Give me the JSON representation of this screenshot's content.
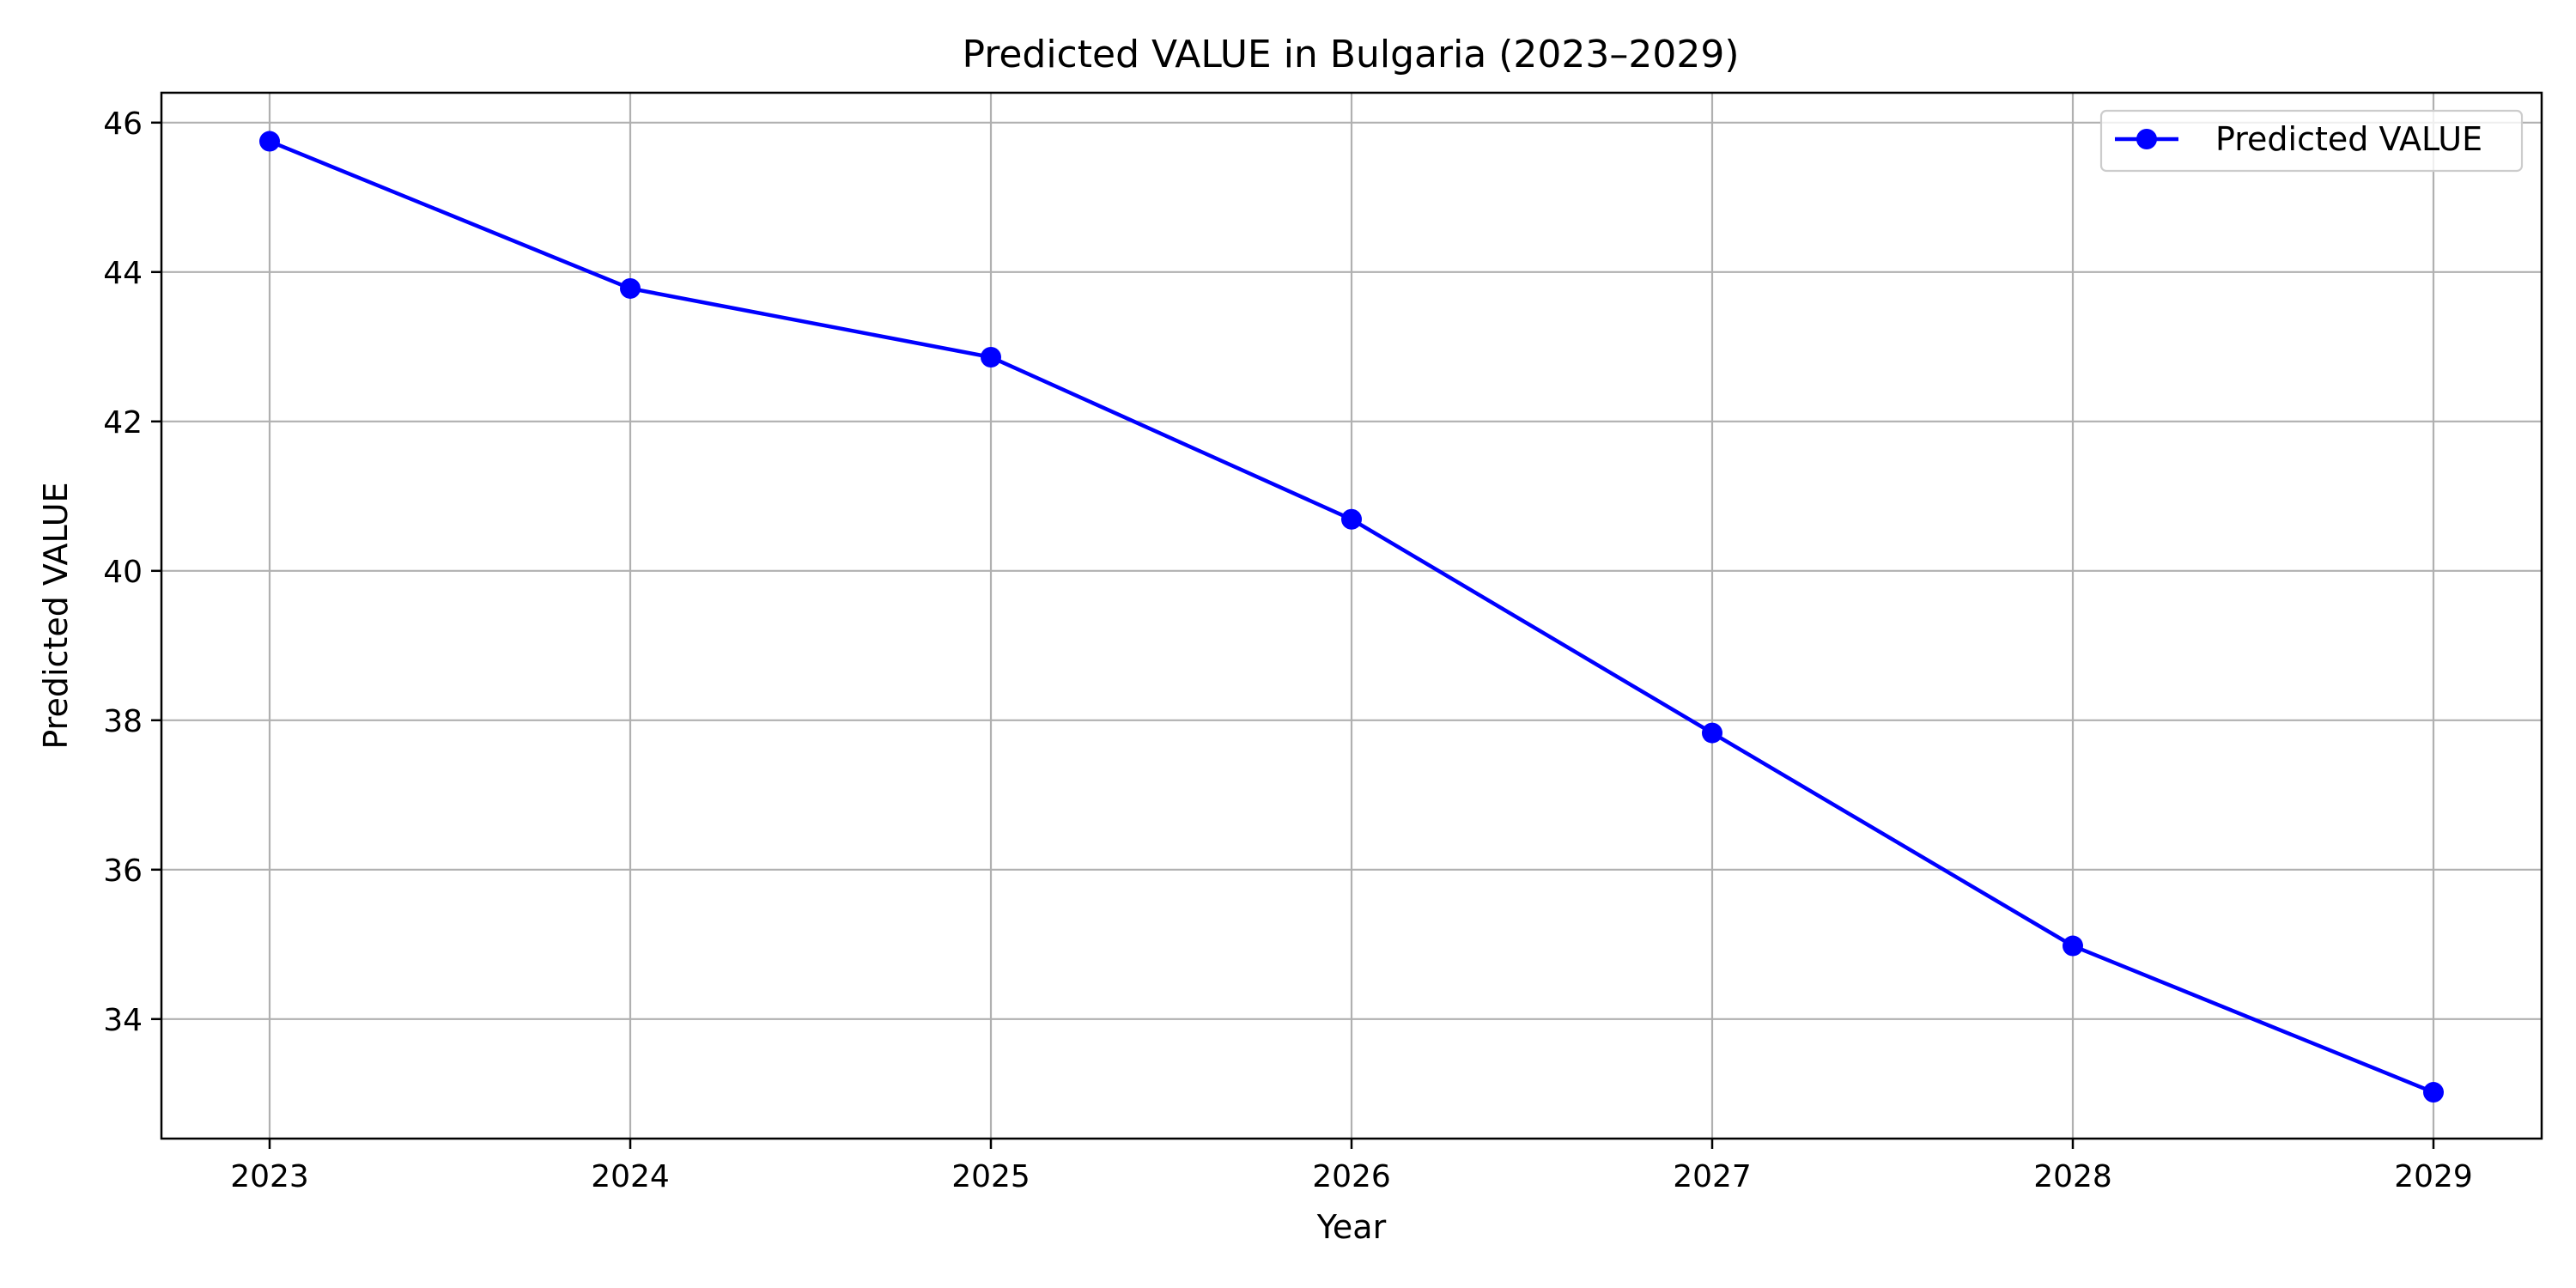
{
  "chart_data": {
    "type": "line",
    "title": "Predicted VALUE in Bulgaria (2023–2029)",
    "xlabel": "Year",
    "ylabel": "Predicted VALUE",
    "x": [
      2023,
      2024,
      2025,
      2026,
      2027,
      2028,
      2029
    ],
    "x_tick_labels": [
      "2023",
      "2024",
      "2025",
      "2026",
      "2027",
      "2028",
      "2029"
    ],
    "y_ticks": [
      34,
      36,
      38,
      40,
      42,
      44,
      46
    ],
    "y_tick_labels": [
      "34",
      "36",
      "38",
      "40",
      "42",
      "44",
      "46"
    ],
    "xlim": [
      2022.7,
      2029.3
    ],
    "ylim": [
      32.4,
      46.4
    ],
    "grid": true,
    "legend_position": "top-right",
    "series": [
      {
        "name": "Predicted VALUE",
        "color": "#0000ff",
        "marker": "circle",
        "values": [
          45.75,
          43.78,
          42.86,
          40.69,
          37.83,
          34.98,
          33.02
        ]
      }
    ]
  }
}
